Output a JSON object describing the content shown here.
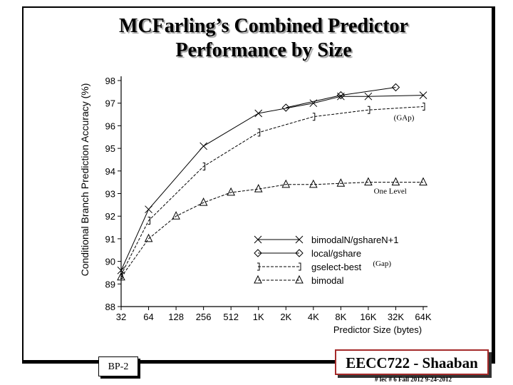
{
  "slide": {
    "title_line1": "MCFarling’s Combined Predictor",
    "title_line2": "Performance by Size",
    "slide_label": "BP-2",
    "course_label": "EECC722 - Shaaban",
    "footer_note": "#  lec # 6   Fall 2012   9-24-2012"
  },
  "chart_data": {
    "type": "line",
    "xlabel": "Predictor Size (bytes)",
    "ylabel": "Conditional Branch Prediction Accuracy (%)",
    "categories": [
      "32",
      "64",
      "128",
      "256",
      "512",
      "1K",
      "2K",
      "4K",
      "8K",
      "16K",
      "32K",
      "64K"
    ],
    "ylim": [
      88,
      98
    ],
    "yticks": [
      88,
      89,
      90,
      91,
      92,
      93,
      94,
      95,
      96,
      97,
      98
    ],
    "grid": false,
    "legend_position": "center-right",
    "series": [
      {
        "name": "bimodalN/gshareN+1",
        "marker": "x",
        "dash": "solid",
        "points": [
          [
            0,
            89.6
          ],
          [
            1,
            92.3
          ],
          [
            3,
            95.1
          ],
          [
            5,
            96.55
          ],
          [
            7,
            97.0
          ],
          [
            8,
            97.3
          ],
          [
            9,
            97.3
          ],
          [
            11,
            97.35
          ]
        ]
      },
      {
        "name": "local/gshare",
        "marker": "diamond",
        "dash": "solid",
        "points": [
          [
            6,
            96.8
          ],
          [
            8,
            97.35
          ],
          [
            10,
            97.7
          ]
        ]
      },
      {
        "name": "gselect-best",
        "marker": "bracket",
        "dash": "dashed",
        "points": [
          [
            0,
            89.4
          ],
          [
            1,
            91.8
          ],
          [
            3,
            94.2
          ],
          [
            5,
            95.7
          ],
          [
            7,
            96.4
          ],
          [
            9,
            96.7
          ],
          [
            11,
            96.85
          ]
        ]
      },
      {
        "name": "bimodal",
        "marker": "triangle",
        "dash": "dashed",
        "points": [
          [
            0,
            89.3
          ],
          [
            1,
            91.0
          ],
          [
            2,
            92.0
          ],
          [
            3,
            92.6
          ],
          [
            4,
            93.05
          ],
          [
            5,
            93.2
          ],
          [
            6,
            93.4
          ],
          [
            7,
            93.4
          ],
          [
            8,
            93.45
          ],
          [
            9,
            93.5
          ],
          [
            10,
            93.5
          ],
          [
            11,
            93.5
          ]
        ]
      }
    ],
    "annotations": [
      {
        "text": "(GAp)",
        "x": 10.3,
        "y": 96.25
      },
      {
        "text": "One Level",
        "x": 9.8,
        "y": 93.0
      },
      {
        "text": "(Gap)",
        "x": 9.5,
        "y": 89.8
      }
    ]
  }
}
